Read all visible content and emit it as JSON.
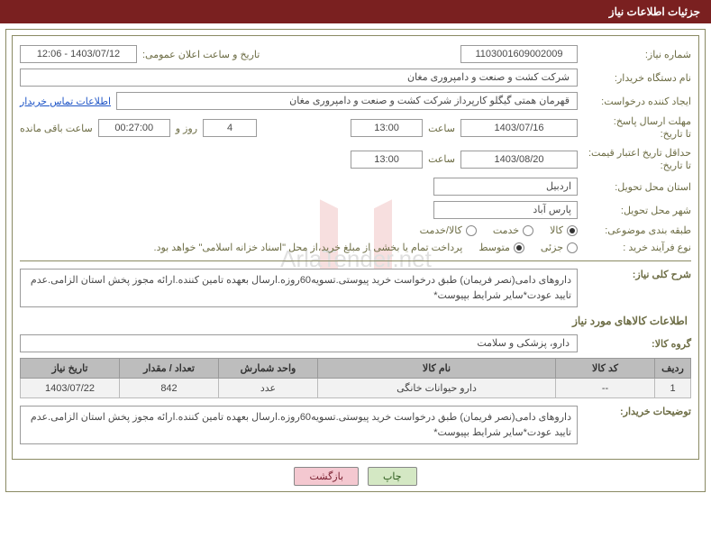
{
  "header": {
    "title": "جزئیات اطلاعات نیاز"
  },
  "fields": {
    "need_number": {
      "label": "شماره نیاز:",
      "value": "1103001609002009"
    },
    "announce_datetime": {
      "label": "تاریخ و ساعت اعلان عمومی:",
      "value": "1403/07/12 - 12:06"
    },
    "buyer_org": {
      "label": "نام دستگاه خریدار:",
      "value": "شرکت کشت و صنعت و دامپروری مغان"
    },
    "requester": {
      "label": "ایجاد کننده درخواست:",
      "value": "قهرمان همتی گیگلو کارپرداز شرکت کشت و صنعت و دامپروری مغان"
    },
    "buyer_contact_link": "اطلاعات تماس خریدار",
    "reply_deadline": {
      "label": "مهلت ارسال پاسخ:",
      "to": "تا تاریخ:",
      "date": "1403/07/16",
      "time_label": "ساعت",
      "time": "13:00",
      "days_label": "روز و",
      "days": "4",
      "remaining_time": "00:27:00",
      "remaining_label": "ساعت باقی مانده"
    },
    "price_validity": {
      "label": "حداقل تاریخ اعتبار قیمت:",
      "to": "تا تاریخ:",
      "date": "1403/08/20",
      "time_label": "ساعت",
      "time": "13:00"
    },
    "delivery_province": {
      "label": "استان محل تحویل:",
      "value": "اردبیل"
    },
    "delivery_city": {
      "label": "شهر محل تحویل:",
      "value": "پارس آباد"
    },
    "subject_class": {
      "label": "طبقه بندی موضوعی:",
      "options": [
        {
          "label": "کالا",
          "checked": true
        },
        {
          "label": "خدمت",
          "checked": false
        },
        {
          "label": "کالا/خدمت",
          "checked": false
        }
      ]
    },
    "purchase_type": {
      "label": "نوع فرآیند خرید :",
      "options": [
        {
          "label": "جزئی",
          "checked": false
        },
        {
          "label": "متوسط",
          "checked": true
        }
      ],
      "note": "پرداخت تمام یا بخشی از مبلغ خرید،از محل \"اسناد خزانه اسلامی\" خواهد بود."
    },
    "general_desc": {
      "label": "شرح کلی نیاز:",
      "value": "داروهای دامی(نصر فریمان) طبق درخواست خرید پیوستی.تسویه60روزه.ارسال بعهده تامین کننده.ارائه مجوز پخش استان الزامی.عدم تایید عودت*سایر شرایط بپیوست*"
    },
    "goods_section_title": "اطلاعات کالاهای مورد نیاز",
    "goods_group": {
      "label": "گروه کالا:",
      "value": "دارو، پزشکی و سلامت"
    },
    "buyer_notes": {
      "label": "توضیحات خریدار:",
      "value": "داروهای دامی(نصر فریمان) طبق درخواست خرید پیوستی.تسویه60روزه.ارسال بعهده تامین کننده.ارائه مجوز پخش استان الزامی.عدم تایید عودت*سایر شرایط بپیوست*"
    }
  },
  "table": {
    "headers": [
      "ردیف",
      "کد کالا",
      "نام کالا",
      "واحد شمارش",
      "تعداد / مقدار",
      "تاریخ نیاز"
    ],
    "rows": [
      {
        "row": "1",
        "code": "--",
        "name": "دارو حیوانات خانگی",
        "unit": "عدد",
        "qty": "842",
        "date": "1403/07/22"
      }
    ]
  },
  "buttons": {
    "print": "چاپ",
    "back": "بازگشت"
  },
  "colors": {
    "header_bg": "#7a2020",
    "border": "#8a8a63",
    "label": "#6d6d45",
    "link": "#2056c7",
    "th_bg": "#bdbdbd",
    "td_bg": "#f2f2f2",
    "btn_green": "#d4e8c4",
    "btn_pink": "#f4c8d0"
  }
}
